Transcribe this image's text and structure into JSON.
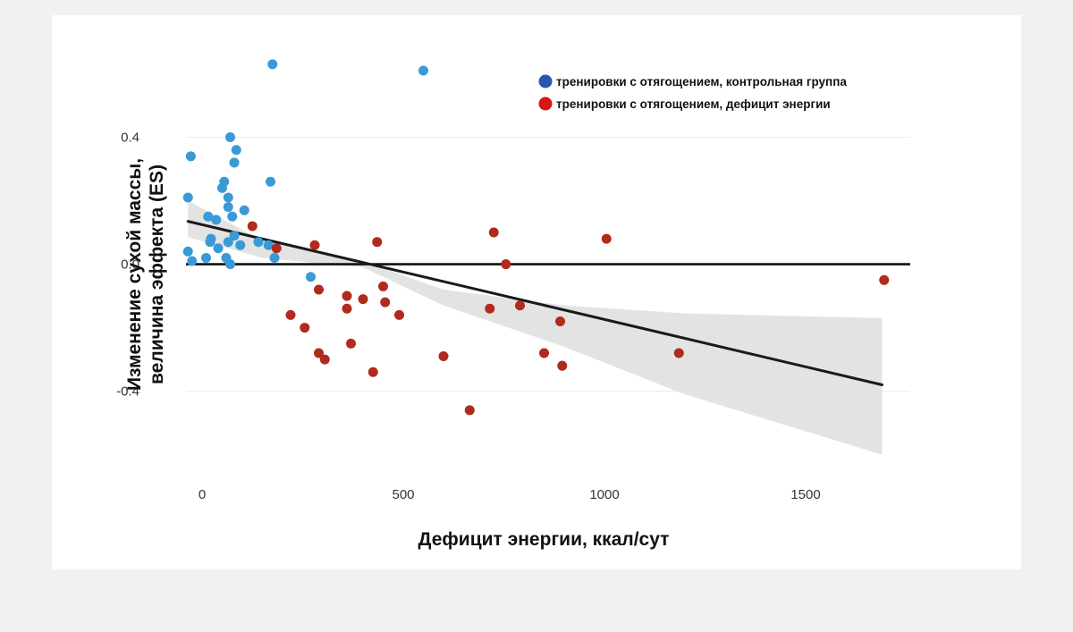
{
  "chart_data": {
    "type": "scatter",
    "title": "",
    "xlabel": "Дефицит энергии, ккал/сут",
    "ylabel_lines": [
      "Изменение сухой массы,",
      "величина эффекта (ES)"
    ],
    "xlim": [
      -40,
      1760
    ],
    "ylim": [
      -0.68,
      0.7
    ],
    "x_ticks": [
      {
        "value": 0,
        "label": "0"
      },
      {
        "value": 500,
        "label": "500"
      },
      {
        "value": 1000,
        "label": "1000"
      },
      {
        "value": 1500,
        "label": "1500"
      }
    ],
    "y_ticks": [
      {
        "value": 0.4,
        "label": "0.4"
      },
      {
        "value": 0.0,
        "label": "0.0"
      },
      {
        "value": -0.4,
        "label": "-0.4"
      }
    ],
    "grid": true,
    "legend_position": "top-right",
    "series": [
      {
        "name": "тренировки с отягощением, контрольная группа",
        "color": "#3a9ad6",
        "legend_color": "#2b56b0",
        "points": [
          [
            -35,
            0.21
          ],
          [
            -35,
            0.04
          ],
          [
            -28,
            0.34
          ],
          [
            -25,
            0.01
          ],
          [
            10,
            0.02
          ],
          [
            15,
            0.15
          ],
          [
            20,
            0.07
          ],
          [
            22,
            0.08
          ],
          [
            35,
            0.14
          ],
          [
            40,
            0.05
          ],
          [
            50,
            0.24
          ],
          [
            55,
            0.26
          ],
          [
            60,
            0.02
          ],
          [
            65,
            0.21
          ],
          [
            65,
            0.18
          ],
          [
            65,
            0.07
          ],
          [
            70,
            0.0
          ],
          [
            70,
            0.4
          ],
          [
            75,
            0.15
          ],
          [
            80,
            0.09
          ],
          [
            80,
            0.32
          ],
          [
            85,
            0.36
          ],
          [
            95,
            0.06
          ],
          [
            105,
            0.17
          ],
          [
            140,
            0.07
          ],
          [
            165,
            0.06
          ],
          [
            170,
            0.26
          ],
          [
            175,
            0.63
          ],
          [
            180,
            0.02
          ],
          [
            270,
            -0.04
          ],
          [
            550,
            0.61
          ]
        ]
      },
      {
        "name": "тренировки с отягощением, дефицит энергии",
        "color": "#b02a1e",
        "legend_color": "#d91414",
        "points": [
          [
            125,
            0.12
          ],
          [
            185,
            0.05
          ],
          [
            220,
            -0.16
          ],
          [
            255,
            -0.2
          ],
          [
            280,
            0.06
          ],
          [
            290,
            -0.08
          ],
          [
            290,
            -0.28
          ],
          [
            305,
            -0.3
          ],
          [
            360,
            -0.1
          ],
          [
            360,
            -0.14
          ],
          [
            370,
            -0.25
          ],
          [
            400,
            -0.11
          ],
          [
            425,
            -0.34
          ],
          [
            435,
            0.07
          ],
          [
            450,
            -0.07
          ],
          [
            455,
            -0.12
          ],
          [
            490,
            -0.16
          ],
          [
            600,
            -0.29
          ],
          [
            665,
            -0.46
          ],
          [
            715,
            -0.14
          ],
          [
            725,
            0.1
          ],
          [
            755,
            0.0
          ],
          [
            790,
            -0.13
          ],
          [
            850,
            -0.28
          ],
          [
            890,
            -0.18
          ],
          [
            895,
            -0.32
          ],
          [
            1005,
            0.08
          ],
          [
            1185,
            -0.28
          ],
          [
            1695,
            -0.05
          ]
        ]
      }
    ],
    "trend_line": {
      "color": "#1a1a1a",
      "points": [
        [
          -35,
          0.135
        ],
        [
          1690,
          -0.38
        ]
      ]
    },
    "confidence_band": {
      "color": "#e3e3e3",
      "upper": [
        [
          -35,
          0.2
        ],
        [
          150,
          0.075
        ],
        [
          400,
          0.01
        ],
        [
          600,
          -0.08
        ],
        [
          900,
          -0.13
        ],
        [
          1200,
          -0.155
        ],
        [
          1690,
          -0.17
        ]
      ],
      "lower": [
        [
          -35,
          0.085
        ],
        [
          150,
          0.02
        ],
        [
          400,
          -0.01
        ],
        [
          600,
          -0.13
        ],
        [
          900,
          -0.26
        ],
        [
          1200,
          -0.41
        ],
        [
          1690,
          -0.6
        ]
      ]
    },
    "zero_line": {
      "value": 0.0,
      "color": "#111111"
    }
  }
}
